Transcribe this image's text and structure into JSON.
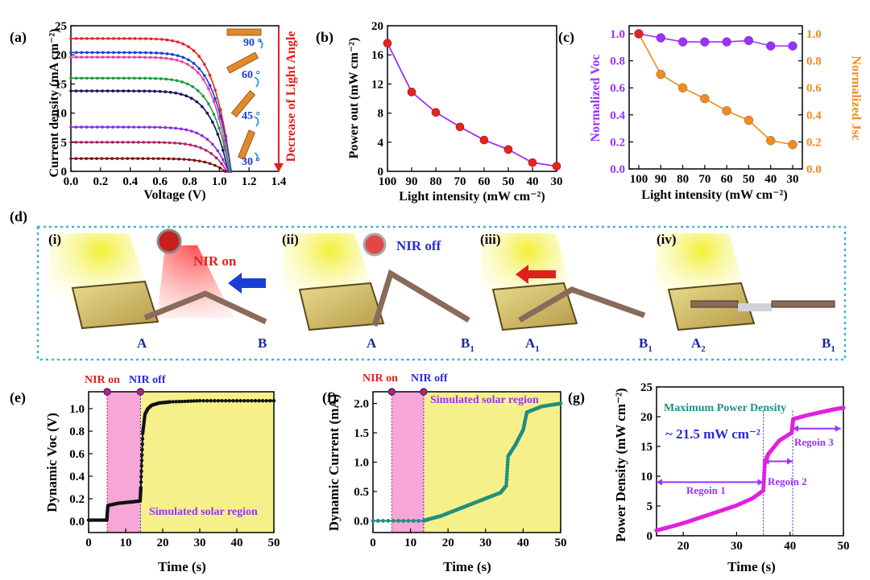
{
  "panel_labels": {
    "a": "(a)",
    "b": "(b)",
    "c": "(c)",
    "d": "(d)",
    "e": "(e)",
    "f": "(f)",
    "g": "(g)"
  },
  "colors": {
    "red_accent": "#e0201b",
    "blue_accent": "#2a2ad8",
    "purple": "#9b30ff",
    "orange": "#f28b1c",
    "teal": "#1f8f7f",
    "magenta": "#e020e0",
    "pink_band": "#f7a6d8",
    "yellow_region": "#f6f08a",
    "dotted_border": "#3bb3d9"
  },
  "chart_data": [
    {
      "id": "a",
      "type": "line",
      "xlabel": "Voltage (V)",
      "ylabel": "Current density (mA cm⁻²)",
      "xlim": [
        0,
        1.4
      ],
      "ylim": [
        0,
        25
      ],
      "xticks": [
        "0.0",
        "0.2",
        "0.4",
        "0.6",
        "0.8",
        "1.0",
        "1.2",
        "1.4"
      ],
      "yticks": [
        "0",
        "5",
        "10",
        "15",
        "20",
        "25"
      ],
      "side_label": "Decrease of Light Angle",
      "angle_labels": [
        "90 °",
        "60 °",
        "45 °",
        "30 °"
      ],
      "series": [
        {
          "jsc": 22.8,
          "voc": 1.08,
          "color": "#e3241f"
        },
        {
          "jsc": 20.4,
          "voc": 1.08,
          "color": "#1a3fd6"
        },
        {
          "jsc": 19.6,
          "voc": 1.07,
          "color": "#e83fa0"
        },
        {
          "jsc": 16.0,
          "voc": 1.07,
          "color": "#1e9a3a"
        },
        {
          "jsc": 13.8,
          "voc": 1.06,
          "color": "#101060"
        },
        {
          "jsc": 7.6,
          "voc": 1.06,
          "color": "#8a2be2"
        },
        {
          "jsc": 5.0,
          "voc": 1.05,
          "color": "#b0206a"
        },
        {
          "jsc": 2.2,
          "voc": 1.04,
          "color": "#7a1010"
        }
      ]
    },
    {
      "id": "b",
      "type": "line",
      "xlabel": "Light intensity (mW cm⁻²)",
      "ylabel": "Power out (mW cm⁻²)",
      "xlim": [
        100,
        30
      ],
      "ylim": [
        0,
        20
      ],
      "xticks": [
        "100",
        "90",
        "80",
        "70",
        "60",
        "50",
        "40",
        "30"
      ],
      "yticks": [
        "0",
        "4",
        "8",
        "12",
        "16",
        "20"
      ],
      "x": [
        100,
        90,
        80,
        70,
        60,
        50,
        40,
        30
      ],
      "y": [
        17.6,
        10.9,
        8.1,
        6.1,
        4.3,
        3.0,
        1.2,
        0.7
      ]
    },
    {
      "id": "c",
      "type": "line",
      "xlabel": "Light intensity (mW cm⁻²)",
      "ylabel_left": "Normalized Voc",
      "ylabel_right": "Normalized Jsc",
      "xlim": [
        100,
        30
      ],
      "ylim": [
        0,
        1.0
      ],
      "xticks": [
        "100",
        "90",
        "80",
        "70",
        "60",
        "50",
        "40",
        "30"
      ],
      "yticks": [
        "0.0",
        "0.2",
        "0.4",
        "0.6",
        "0.8",
        "1.0"
      ],
      "x": [
        100,
        90,
        80,
        70,
        60,
        50,
        40,
        30
      ],
      "series": [
        {
          "values": [
            1.0,
            0.97,
            0.94,
            0.94,
            0.94,
            0.95,
            0.91,
            0.91
          ],
          "color": "#9b30ff"
        },
        {
          "values": [
            1.0,
            0.7,
            0.6,
            0.52,
            0.43,
            0.36,
            0.21,
            0.18
          ],
          "color": "#f28b1c"
        }
      ]
    },
    {
      "id": "e",
      "type": "line",
      "xlabel": "Time (s)",
      "ylabel": "Dynamic Voc (V)",
      "xlim": [
        0,
        50
      ],
      "ylim": [
        -0.1,
        1.15
      ],
      "xticks": [
        "0",
        "10",
        "20",
        "30",
        "40",
        "50"
      ],
      "yticks": [
        "0.0",
        "0.2",
        "0.4",
        "0.6",
        "0.8",
        "1.0"
      ],
      "nir_on_label": "NIR on",
      "nir_off_label": "NIR off",
      "nir_on_x": 5,
      "nir_off_x": 14,
      "region_label": "Simulated solar region",
      "x": [
        0,
        4.9,
        5.2,
        8,
        11,
        13.9,
        14.1,
        14.6,
        15.2,
        16,
        17,
        19,
        22,
        30,
        40,
        50
      ],
      "y": [
        0.01,
        0.01,
        0.14,
        0.16,
        0.17,
        0.18,
        0.3,
        0.78,
        0.95,
        1.0,
        1.03,
        1.05,
        1.06,
        1.07,
        1.07,
        1.07
      ]
    },
    {
      "id": "f",
      "type": "line",
      "xlabel": "Time (s)",
      "ylabel": "Dynamic Current (mA)",
      "xlim": [
        0,
        50
      ],
      "ylim": [
        -0.2,
        2.2
      ],
      "xticks": [
        "0",
        "10",
        "20",
        "30",
        "40",
        "50"
      ],
      "yticks": [
        "0.0",
        "0.5",
        "1.0",
        "1.5",
        "2.0"
      ],
      "nir_on_label": "NIR on",
      "nir_off_label": "NIR off",
      "nir_on_x": 5,
      "nir_off_x": 13.5,
      "region_label": "Simulated solar region",
      "x": [
        0,
        13.5,
        15,
        18,
        22,
        26,
        30,
        34,
        35.5,
        36,
        38,
        40,
        41,
        45,
        50
      ],
      "y": [
        0.0,
        0.0,
        0.03,
        0.08,
        0.18,
        0.28,
        0.38,
        0.48,
        0.6,
        1.1,
        1.3,
        1.55,
        1.85,
        1.95,
        2.0
      ]
    },
    {
      "id": "g",
      "type": "line",
      "xlabel": "Time (s)",
      "ylabel": "Power Density (mW cm⁻²)",
      "xlim": [
        15,
        50
      ],
      "ylim": [
        0,
        25
      ],
      "xticks": [
        "20",
        "30",
        "40",
        "50"
      ],
      "yticks": [
        "0",
        "5",
        "10",
        "15",
        "20",
        "25"
      ],
      "title": "Maximum Power Density",
      "value_label": "~ 21.5 mW cm⁻²",
      "regions": [
        "Regoin 1",
        "Regoin 2",
        "Regoin 3"
      ],
      "dividers": [
        35,
        40.5
      ],
      "x": [
        15,
        18,
        21,
        24,
        27,
        30,
        33,
        35,
        35.3,
        36,
        38,
        40.3,
        40.6,
        43,
        46,
        48,
        50
      ],
      "y": [
        0.9,
        1.6,
        2.4,
        3.3,
        4.2,
        5.1,
        6.3,
        7.6,
        12.5,
        13.8,
        16.0,
        17.3,
        19.6,
        20.2,
        20.8,
        21.2,
        21.5
      ]
    }
  ],
  "panel_d": {
    "steps": [
      "(i)",
      "(ii)",
      "(iii)",
      "(iv)"
    ],
    "nir_on": "NIR on",
    "nir_off": "NIR off",
    "ends": [
      {
        "left": "A",
        "right": "B"
      },
      {
        "left": "A",
        "right": "B",
        "right_sub": "1"
      },
      {
        "left": "A",
        "left_sub": "1",
        "right": "B",
        "right_sub": "1"
      },
      {
        "left": "A",
        "left_sub": "2",
        "right": "B",
        "right_sub": "1"
      }
    ]
  }
}
